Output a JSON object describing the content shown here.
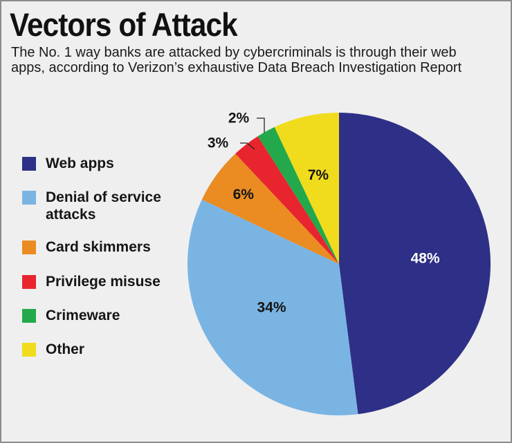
{
  "header": {
    "title": "Vectors of Attack",
    "subtitle": "The No. 1 way banks are attacked by cybercriminals is through their web apps, according to Verizon’s exhaustive Data Breach Investigation Report"
  },
  "legend": {
    "items": [
      {
        "label": "Web apps",
        "color": "#2e2f86"
      },
      {
        "label": "Denial of service attacks",
        "color": "#7ab4e3"
      },
      {
        "label": "Card skimmers",
        "color": "#ea8c22"
      },
      {
        "label": "Privilege misuse",
        "color": "#e8252f"
      },
      {
        "label": "Crimeware",
        "color": "#23a94b"
      },
      {
        "label": "Other",
        "color": "#f0dc1c"
      }
    ]
  },
  "chart_data": {
    "type": "pie",
    "title": "Vectors of Attack",
    "unit": "%",
    "slices": [
      {
        "label": "Web apps",
        "value": 48,
        "display": "48%",
        "color": "#2e2f86"
      },
      {
        "label": "Denial of service attacks",
        "value": 34,
        "display": "34%",
        "color": "#7ab4e3"
      },
      {
        "label": "Card skimmers",
        "value": 6,
        "display": "6%",
        "color": "#ea8c22"
      },
      {
        "label": "Privilege misuse",
        "value": 3,
        "display": "3%",
        "color": "#e8252f"
      },
      {
        "label": "Crimeware",
        "value": 2,
        "display": "2%",
        "color": "#23a94b"
      },
      {
        "label": "Other",
        "value": 7,
        "display": "7%",
        "color": "#f0dc1c"
      }
    ],
    "start": "12 o'clock",
    "direction": "clockwise",
    "legend_position": "left"
  }
}
